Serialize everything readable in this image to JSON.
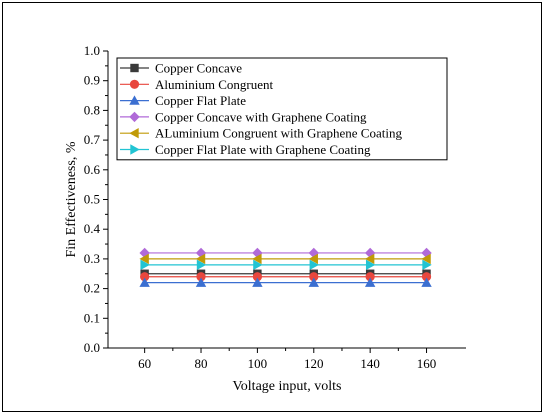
{
  "chart_data": {
    "type": "line",
    "x": [
      60,
      80,
      100,
      120,
      140,
      160
    ],
    "xlabel": "Voltage input, volts",
    "ylabel": "Fin Effectiveness, %",
    "xlim": [
      47,
      174
    ],
    "ylim": [
      0.0,
      1.0
    ],
    "xticks": [
      "60",
      "80",
      "100",
      "120",
      "140",
      "160"
    ],
    "yticks": [
      "0.0",
      "0.1",
      "0.2",
      "0.3",
      "0.4",
      "0.5",
      "0.6",
      "0.7",
      "0.8",
      "0.9",
      "1.0"
    ],
    "grid": false,
    "legend_position": "top-left",
    "series": [
      {
        "name": "Copper Concave",
        "color": "#3a3a3a",
        "marker": "square",
        "values": [
          0.25,
          0.25,
          0.25,
          0.25,
          0.25,
          0.25
        ]
      },
      {
        "name": "Aluminium Congruent",
        "color": "#e8473e",
        "marker": "circle",
        "values": [
          0.24,
          0.24,
          0.24,
          0.24,
          0.24,
          0.24
        ]
      },
      {
        "name": "Copper Flat Plate",
        "color": "#3b6fd1",
        "marker": "triangle-up",
        "values": [
          0.22,
          0.22,
          0.22,
          0.22,
          0.22,
          0.22
        ]
      },
      {
        "name": "Copper Concave with Graphene Coating",
        "color": "#b06ad8",
        "marker": "diamond",
        "values": [
          0.32,
          0.32,
          0.32,
          0.32,
          0.32,
          0.32
        ]
      },
      {
        "name": "ALuminium Congruent with Graphene Coating",
        "color": "#c09a07",
        "marker": "triangle-left",
        "values": [
          0.3,
          0.3,
          0.3,
          0.3,
          0.3,
          0.3
        ]
      },
      {
        "name": "Copper Flat Plate with Graphene Coating",
        "color": "#22c4d3",
        "marker": "triangle-right",
        "values": [
          0.28,
          0.28,
          0.28,
          0.28,
          0.28,
          0.28
        ]
      }
    ]
  }
}
